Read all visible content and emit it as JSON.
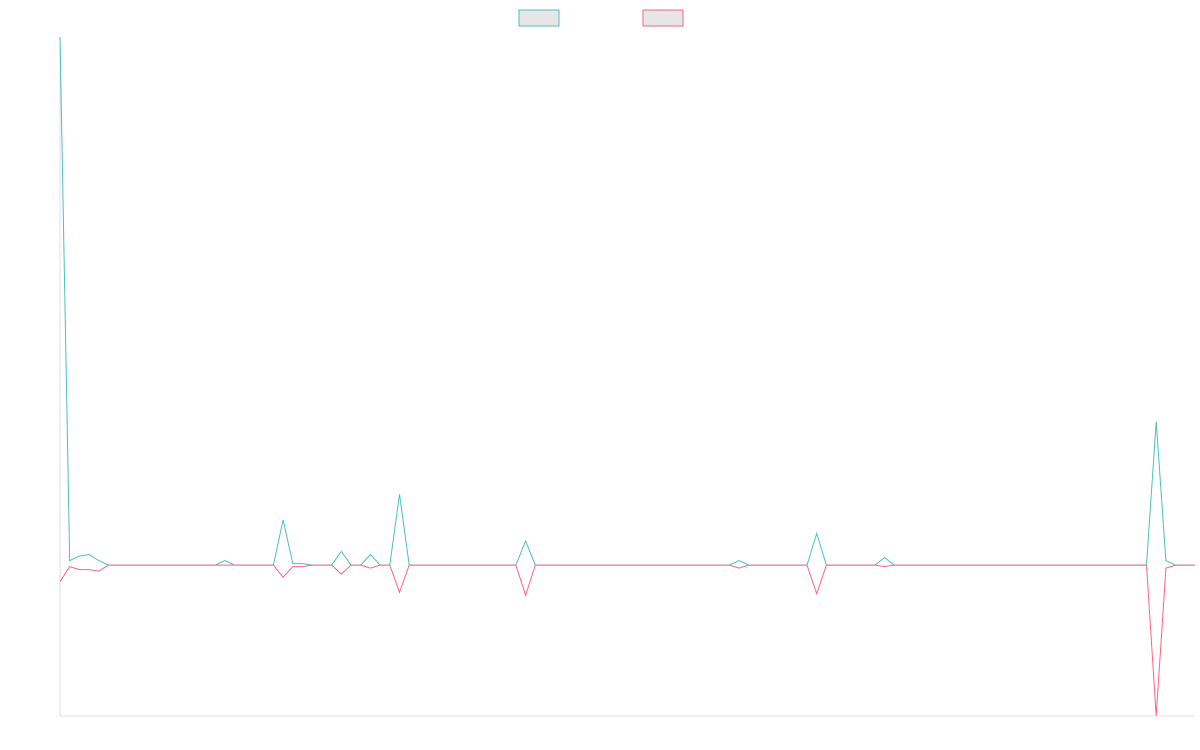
{
  "chart_data": {
    "type": "line",
    "ylim": [
      -1,
      3.5
    ],
    "legend": "top",
    "series": [
      {
        "color": "#4bc0c0",
        "values": [
          3.5,
          0.03,
          0.06,
          0.07,
          0.03,
          0,
          0,
          0,
          0,
          0,
          0,
          0,
          0,
          0,
          0,
          0,
          0,
          0.03,
          0,
          0,
          0,
          0,
          0,
          0.3,
          0.01,
          0.01,
          0,
          0,
          0,
          0.09,
          0,
          0,
          0.07,
          0,
          0,
          0.47,
          0,
          0,
          0,
          0,
          0,
          0,
          0,
          0,
          0,
          0,
          0,
          0,
          0.16,
          0,
          0,
          0,
          0,
          0,
          0,
          0,
          0,
          0,
          0,
          0,
          0,
          0,
          0,
          0,
          0,
          0,
          0,
          0,
          0,
          0,
          0.03,
          0,
          0,
          0,
          0,
          0,
          0,
          0,
          0.21,
          0,
          0,
          0,
          0,
          0,
          0,
          0.05,
          0,
          0,
          0,
          0,
          0,
          0,
          0,
          0,
          0,
          0,
          0,
          0,
          0,
          0,
          0,
          0,
          0,
          0,
          0,
          0,
          0,
          0,
          0,
          0,
          0,
          0,
          0,
          0.95,
          0.03,
          0,
          0,
          0
        ]
      },
      {
        "color": "#ff6384",
        "values": [
          -0.11,
          -0.01,
          -0.03,
          -0.03,
          -0.04,
          0,
          0,
          0,
          0,
          0,
          0,
          0,
          0,
          0,
          0,
          0,
          0,
          0,
          0,
          0,
          0,
          0,
          0,
          -0.08,
          -0.01,
          -0.01,
          0,
          0,
          0,
          -0.06,
          0,
          0,
          -0.02,
          0,
          0,
          -0.18,
          0,
          0,
          0,
          0,
          0,
          0,
          0,
          0,
          0,
          0,
          0,
          0,
          -0.2,
          0,
          0,
          0,
          0,
          0,
          0,
          0,
          0,
          0,
          0,
          0,
          0,
          0,
          0,
          0,
          0,
          0,
          0,
          0,
          0,
          0,
          -0.02,
          0,
          0,
          0,
          0,
          0,
          0,
          0,
          -0.19,
          0,
          0,
          0,
          0,
          0,
          0,
          -0.01,
          0,
          0,
          0,
          0,
          0,
          0,
          0,
          0,
          0,
          0,
          0,
          0,
          0,
          0,
          0,
          0,
          0,
          0,
          0,
          0,
          0,
          0,
          0,
          0,
          0,
          0,
          0,
          -1,
          -0.02,
          0,
          0,
          0
        ]
      }
    ]
  }
}
